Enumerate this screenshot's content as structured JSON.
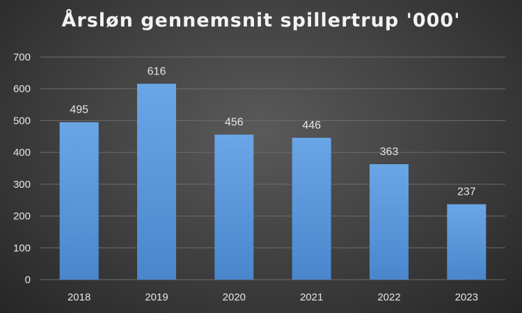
{
  "chart_data": {
    "type": "bar",
    "title": "Årsløn gennemsnit spillertrup '000'",
    "categories": [
      "2018",
      "2019",
      "2020",
      "2021",
      "2022",
      "2023"
    ],
    "values": [
      495,
      616,
      456,
      446,
      363,
      237
    ],
    "xlabel": "",
    "ylabel": "",
    "ylim": [
      0,
      700
    ],
    "yticks": [
      0,
      100,
      200,
      300,
      400,
      500,
      600,
      700
    ],
    "grid": true,
    "legend": "none",
    "bar_color_top": "#6aa6e6",
    "bar_color_bottom": "#4a86cc",
    "gridline_color": "#6e6e6e"
  }
}
